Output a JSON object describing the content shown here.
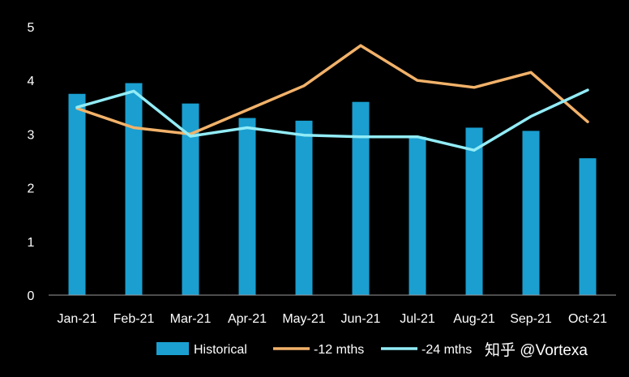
{
  "chart_data": {
    "type": "bar",
    "title": "",
    "xlabel": "",
    "ylabel": "",
    "ylim": [
      0,
      5
    ],
    "yticks": [
      "0",
      "1",
      "2",
      "3",
      "4",
      "5"
    ],
    "categories": [
      "Jan-21",
      "Feb-21",
      "Mar-21",
      "Apr-21",
      "May-21",
      "Jun-21",
      "Jul-21",
      "Aug-21",
      "Sep-21",
      "Oct-21"
    ],
    "series": [
      {
        "name": "Historical",
        "kind": "bar",
        "color": "#1a9fd0",
        "values": [
          3.75,
          3.95,
          3.57,
          3.3,
          3.25,
          3.6,
          2.95,
          3.12,
          3.06,
          2.55
        ]
      },
      {
        "name": "-12 mths",
        "kind": "line",
        "color": "#f2b26a",
        "values": [
          3.48,
          3.12,
          3.0,
          3.45,
          3.9,
          4.65,
          4.0,
          3.87,
          4.15,
          3.23
        ]
      },
      {
        "name": "-24 mths",
        "kind": "line",
        "color": "#92ecf6",
        "values": [
          3.5,
          3.8,
          2.96,
          3.12,
          2.98,
          2.95,
          2.95,
          2.7,
          3.33,
          3.82
        ]
      }
    ],
    "legend": {
      "position": "bottom",
      "labels": [
        "Historical",
        "-12 mths",
        "-24 mths"
      ]
    }
  },
  "watermark": {
    "text": "知乎 @Vortexa"
  }
}
